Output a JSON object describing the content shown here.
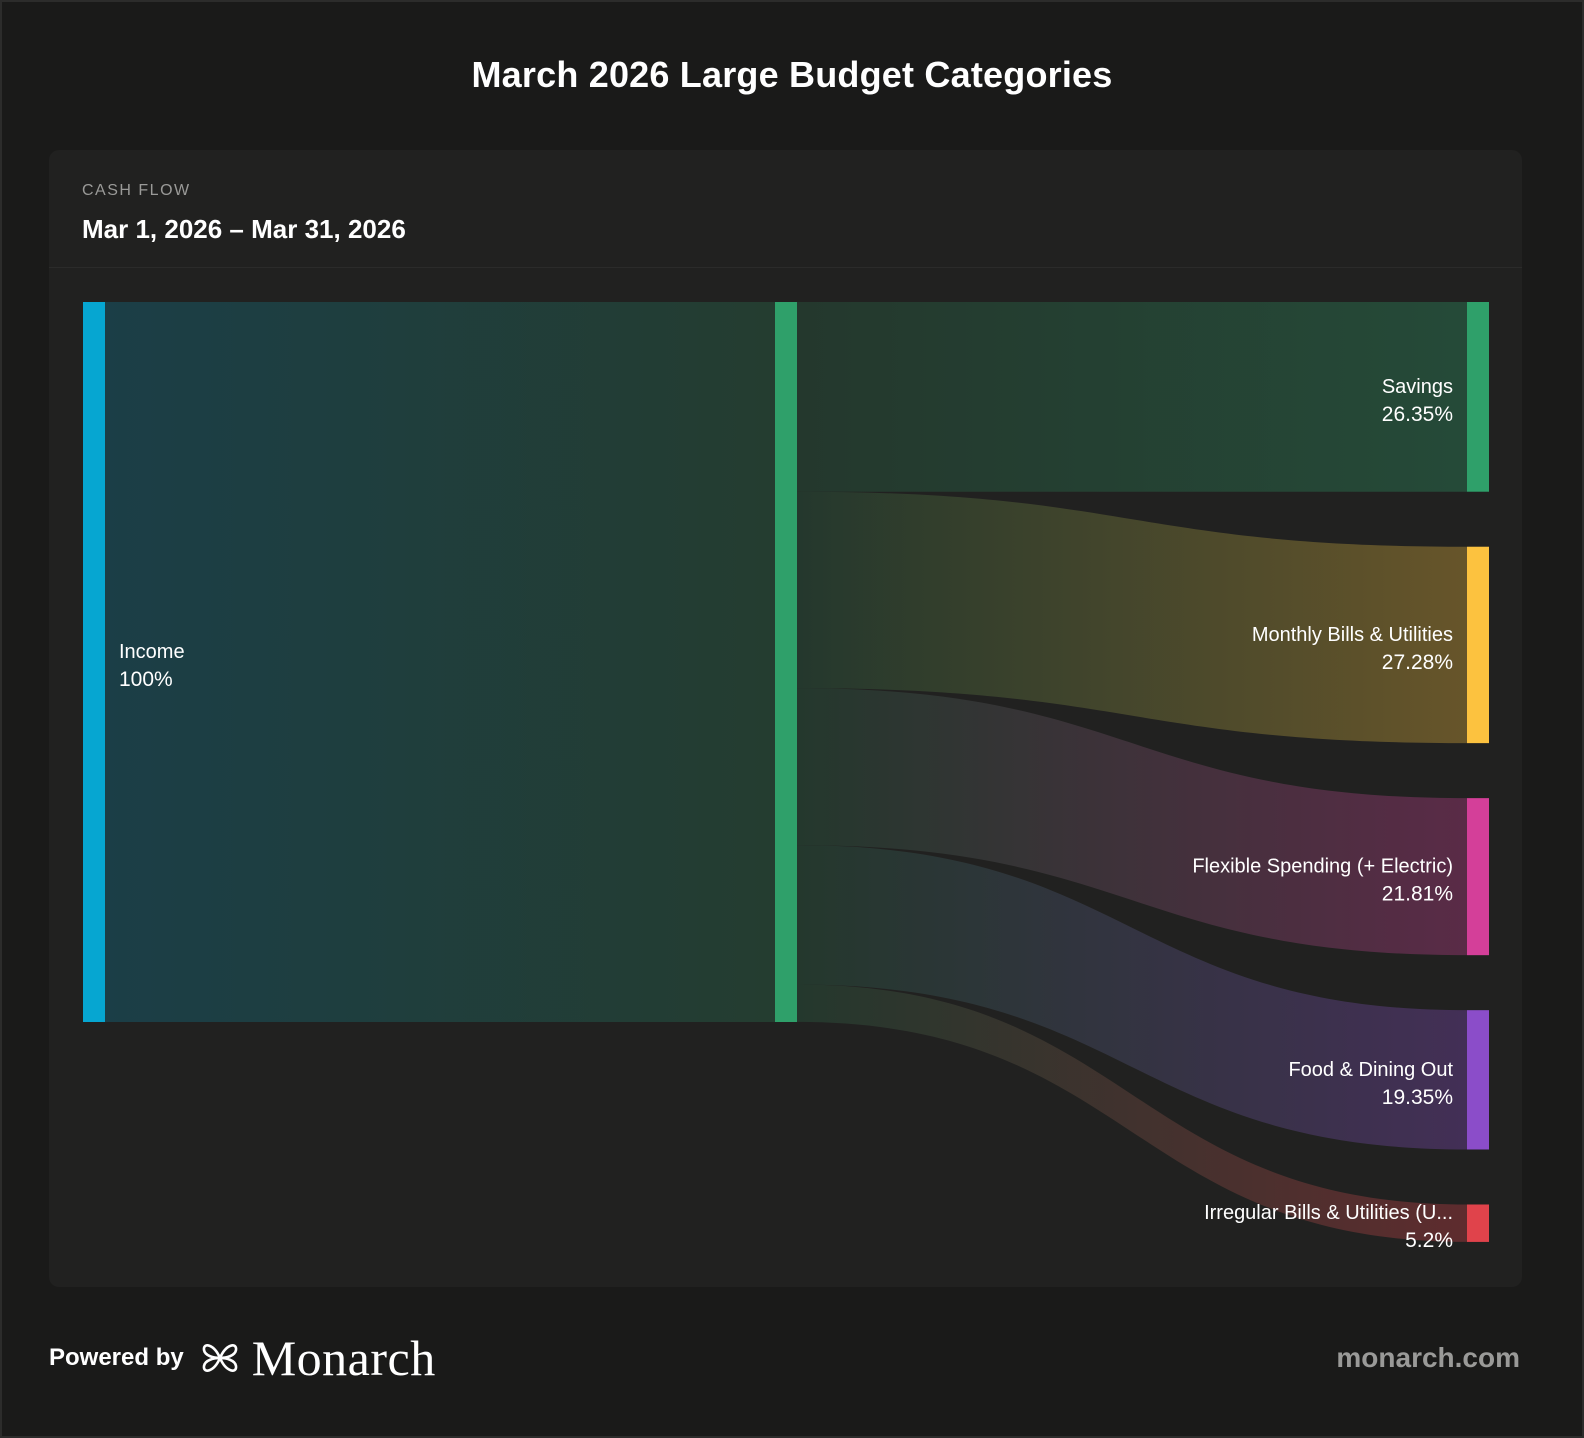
{
  "page": {
    "title": "March 2026 Large Budget Categories"
  },
  "card": {
    "kicker": "CASH FLOW",
    "date_range": "Mar 1, 2026 – Mar 31, 2026"
  },
  "chart_data": {
    "type": "sankey",
    "title": "March 2026 Large Budget Categories",
    "source": {
      "label": "Income",
      "percent_label": "100%",
      "value": 100,
      "color": "#06a6d1"
    },
    "middle": {
      "label": "",
      "value": 100,
      "color": "#2fa06a"
    },
    "targets": [
      {
        "label": "Savings",
        "percent_label": "26.35%",
        "value": 26.35,
        "color": "#2fa06a"
      },
      {
        "label": "Monthly Bills & Utilities",
        "percent_label": "27.28%",
        "value": 27.28,
        "color": "#fcc23f"
      },
      {
        "label": "Flexible Spending (+ Electric)",
        "percent_label": "21.81%",
        "value": 21.81,
        "color": "#d43f99"
      },
      {
        "label": "Food & Dining Out",
        "percent_label": "19.35%",
        "value": 19.35,
        "color": "#8b4dc9"
      },
      {
        "label": "Irregular Bills & Utilities (U...",
        "percent_label": "5.2%",
        "value": 5.2,
        "color": "#e0434b"
      }
    ]
  },
  "footer": {
    "powered_by": "Powered by",
    "brand": "Monarch",
    "site": "monarch.com"
  }
}
